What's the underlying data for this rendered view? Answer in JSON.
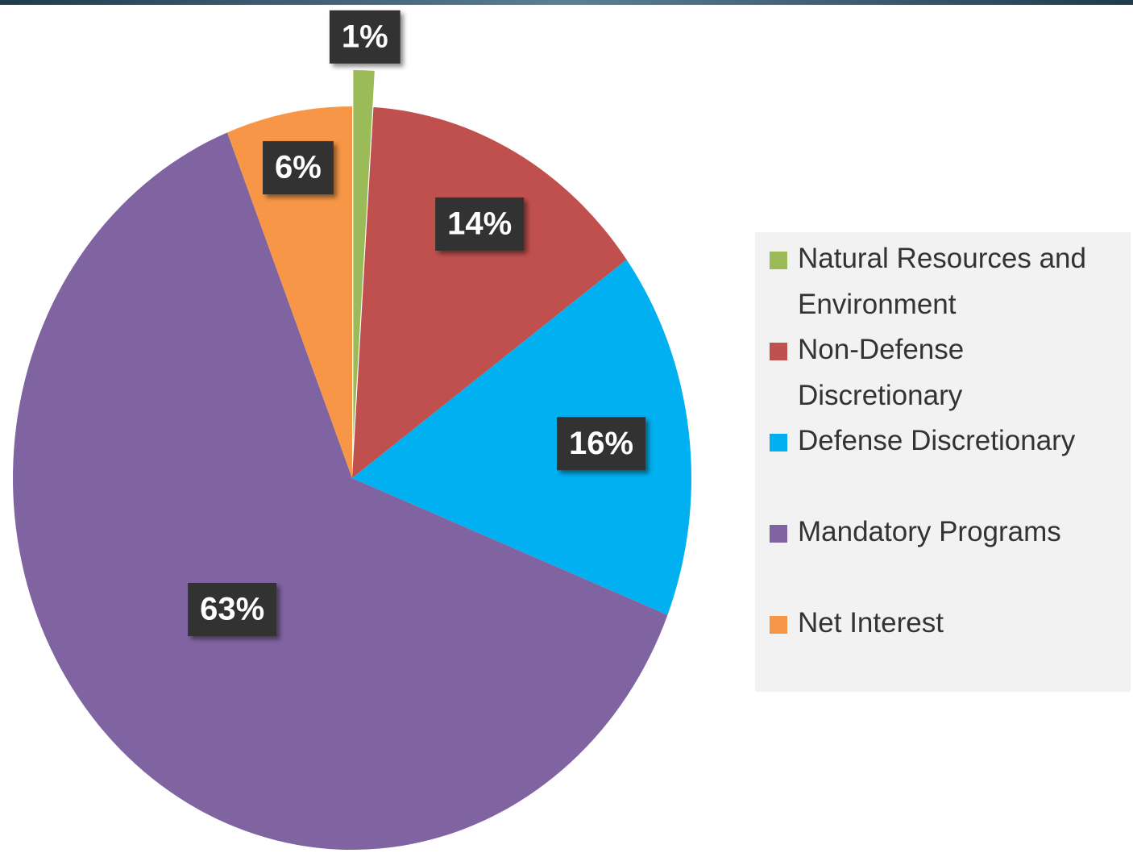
{
  "chart_data": {
    "type": "pie",
    "categories": [
      "Natural Resources and Environment",
      "Non-Defense Discretionary",
      "Defense Discretionary",
      "Mandatory Programs",
      "Net Interest"
    ],
    "values": [
      1,
      14,
      16,
      63,
      6
    ],
    "value_labels": [
      "1%",
      "14%",
      "16%",
      "63%",
      "6%"
    ],
    "colors": [
      "#9bbb59",
      "#c0504d",
      "#00b0f0",
      "#8064a2",
      "#f79646"
    ],
    "legend": "right"
  }
}
